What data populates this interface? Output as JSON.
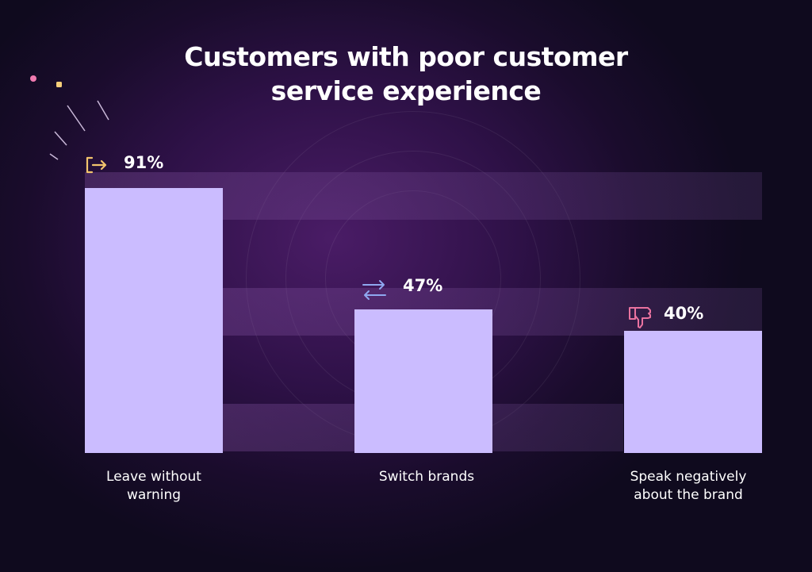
{
  "chart_data": {
    "type": "bar",
    "title": "Customers with poor customer service experience",
    "title_lines": [
      "Customers with poor customer",
      "service experience"
    ],
    "categories": [
      "Leave without warning",
      "Switch brands",
      "Speak negatively about the brand"
    ],
    "category_lines": [
      [
        "Leave without",
        "warning"
      ],
      [
        "Switch brands"
      ],
      [
        "Speak negatively",
        "about the brand"
      ]
    ],
    "values": [
      91,
      47,
      40
    ],
    "value_labels": [
      "91%",
      "47%",
      "40%"
    ],
    "icons": [
      "exit-icon",
      "swap-arrows-icon",
      "thumbs-down-icon"
    ],
    "icon_colors": [
      "#f2c46d",
      "#8fa8f0",
      "#e9729f"
    ],
    "bar_color": "#cbbcff",
    "xlabel": "",
    "ylabel": "",
    "ylim": [
      0,
      100
    ],
    "grid": false
  }
}
